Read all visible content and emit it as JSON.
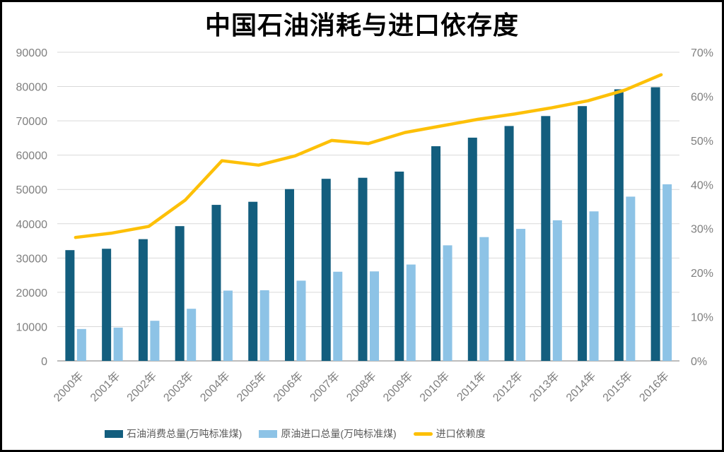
{
  "chart_data": {
    "type": "combo-bar-line",
    "title": "中国石油消耗与进口依存度",
    "categories": [
      "2000年",
      "2001年",
      "2002年",
      "2003年",
      "2004年",
      "2005年",
      "2006年",
      "2007年",
      "2008年",
      "2009年",
      "2010年",
      "2011年",
      "2012年",
      "2013年",
      "2014年",
      "2015年",
      "2016年"
    ],
    "series": [
      {
        "name": "石油消费总量(万吨标准煤)",
        "type": "bar",
        "axis": "left",
        "color": "#135e7e",
        "values": [
          32300,
          32700,
          35500,
          39300,
          45500,
          46400,
          50100,
          53100,
          53400,
          55200,
          62600,
          65100,
          68500,
          71400,
          74300,
          79200,
          79800
        ]
      },
      {
        "name": "原油进口总量(万吨标准煤)",
        "type": "bar",
        "axis": "left",
        "color": "#8dc3e6",
        "values": [
          9300,
          9700,
          11700,
          15200,
          20500,
          20600,
          23400,
          26000,
          26100,
          28100,
          33700,
          36100,
          38500,
          41000,
          43600,
          47900,
          51500
        ]
      },
      {
        "name": "进口依赖度",
        "type": "line",
        "axis": "right",
        "color": "#fdc008",
        "values": [
          28,
          29,
          30.5,
          36.5,
          45.4,
          44.4,
          46.5,
          50,
          49.3,
          51.8,
          53.3,
          54.8,
          56,
          57.4,
          59,
          61.4,
          64.9
        ]
      }
    ],
    "left_axis": {
      "min": 0,
      "max": 90000,
      "step": 10000,
      "tick_labels": [
        "0",
        "10000",
        "20000",
        "30000",
        "40000",
        "50000",
        "60000",
        "70000",
        "80000",
        "90000"
      ]
    },
    "right_axis": {
      "min": 0,
      "max": 70,
      "step": 10,
      "tick_labels": [
        "0%",
        "10%",
        "20%",
        "30%",
        "40%",
        "50%",
        "60%",
        "70%"
      ]
    },
    "grid": true,
    "legend_position": "bottom",
    "colors": {
      "gridline": "#d9d9d9",
      "axis_line": "#a6a6a6",
      "tick_text": "#7f7f7f",
      "legend_text": "#595959",
      "title_text": "#000000",
      "background": "#ffffff",
      "frame_border": "#000000"
    }
  }
}
